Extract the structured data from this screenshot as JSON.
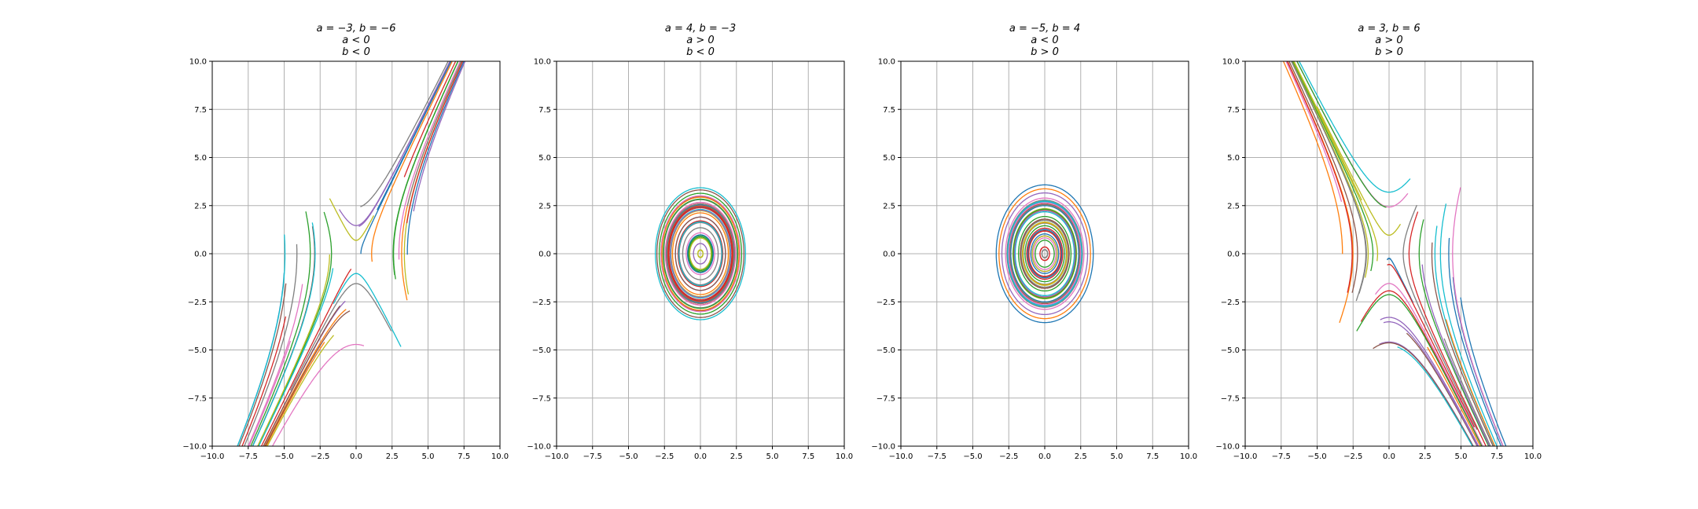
{
  "chart_data": [
    {
      "type": "line",
      "system": "phase-portrait",
      "a": -3,
      "b": -6,
      "title_lines": [
        "a = −3, b = −6",
        "a < 0",
        "b < 0"
      ],
      "xlim": [
        -10,
        10
      ],
      "ylim": [
        -10,
        10
      ],
      "xticks": [
        "−10.0",
        "−7.5",
        "−5.0",
        "−2.5",
        "0.0",
        "2.5",
        "5.0",
        "7.5",
        "10.0"
      ],
      "yticks": [
        "−10.0",
        "−7.5",
        "−5.0",
        "−2.5",
        "0.0",
        "2.5",
        "5.0",
        "7.5",
        "10.0"
      ],
      "grid": true,
      "series_pattern": "hyperbolic trajectories (saddle)"
    },
    {
      "type": "line",
      "system": "phase-portrait",
      "a": 4,
      "b": -3,
      "title_lines": [
        "a = 4, b = −3",
        "a > 0",
        "b < 0"
      ],
      "xlim": [
        -10,
        10
      ],
      "ylim": [
        -10,
        10
      ],
      "xticks": [
        "−10.0",
        "−7.5",
        "−5.0",
        "−2.5",
        "0.0",
        "2.5",
        "5.0",
        "7.5",
        "10.0"
      ],
      "yticks": [
        "−10.0",
        "−7.5",
        "−5.0",
        "−2.5",
        "0.0",
        "2.5",
        "5.0",
        "7.5",
        "10.0"
      ],
      "grid": true,
      "series_pattern": "closed elliptical orbits (center)"
    },
    {
      "type": "line",
      "system": "phase-portrait",
      "a": -5,
      "b": 4,
      "title_lines": [
        "a = −5, b = 4",
        "a < 0",
        "b > 0"
      ],
      "xlim": [
        -10,
        10
      ],
      "ylim": [
        -10,
        10
      ],
      "xticks": [
        "−10.0",
        "−7.5",
        "−5.0",
        "−2.5",
        "0.0",
        "2.5",
        "5.0",
        "7.5",
        "10.0"
      ],
      "yticks": [
        "−10.0",
        "−7.5",
        "−5.0",
        "−2.5",
        "0.0",
        "2.5",
        "5.0",
        "7.5",
        "10.0"
      ],
      "grid": true,
      "series_pattern": "closed elliptical orbits (center)"
    },
    {
      "type": "line",
      "system": "phase-portrait",
      "a": 3,
      "b": 6,
      "title_lines": [
        "a = 3, b = 6",
        "a > 0",
        "b > 0"
      ],
      "xlim": [
        -10,
        10
      ],
      "ylim": [
        -10,
        10
      ],
      "xticks": [
        "−10.0",
        "−7.5",
        "−5.0",
        "−2.5",
        "0.0",
        "2.5",
        "5.0",
        "7.5",
        "10.0"
      ],
      "yticks": [
        "−10.0",
        "−7.5",
        "−5.0",
        "−2.5",
        "0.0",
        "2.5",
        "5.0",
        "7.5",
        "10.0"
      ],
      "grid": true,
      "series_pattern": "hyperbolic trajectories (saddle)"
    }
  ],
  "colors": [
    "#1f77b4",
    "#ff7f0e",
    "#2ca02c",
    "#d62728",
    "#9467bd",
    "#8c564b",
    "#e377c2",
    "#7f7f7f",
    "#bcbd22",
    "#17becf"
  ]
}
